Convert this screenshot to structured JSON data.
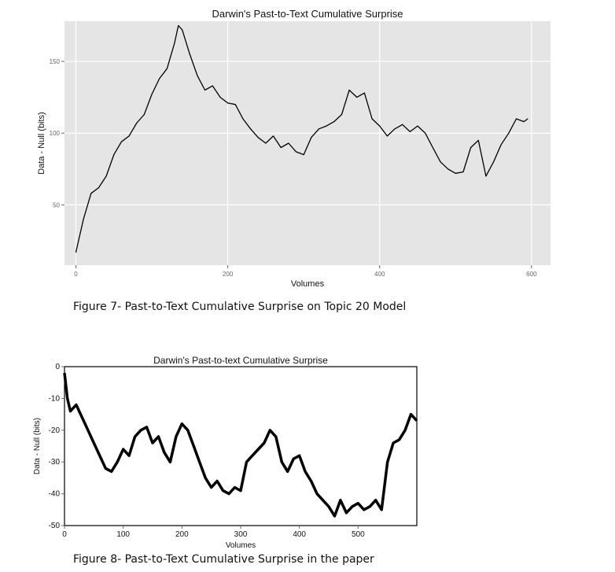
{
  "chart_data": [
    {
      "type": "line",
      "title": "Darwin's Past-to-Text Cumulative Surprise",
      "xlabel": "Volumes",
      "ylabel": "Data - Null (bits)",
      "xlim": [
        -15,
        625
      ],
      "ylim": [
        8,
        178
      ],
      "xticks": [
        0,
        200,
        400,
        600
      ],
      "yticks": [
        50,
        100,
        150
      ],
      "grid": true,
      "series": [
        {
          "x": [
            0,
            10,
            20,
            30,
            40,
            50,
            60,
            70,
            80,
            90,
            100,
            110,
            120,
            130,
            135,
            140,
            150,
            160,
            170,
            180,
            190,
            200,
            210,
            220,
            230,
            240,
            250,
            260,
            270,
            280,
            290,
            300,
            310,
            320,
            330,
            340,
            350,
            360,
            370,
            380,
            390,
            400,
            410,
            420,
            430,
            440,
            450,
            460,
            470,
            480,
            490,
            500,
            510,
            520,
            530,
            540,
            550,
            560,
            570,
            580,
            590,
            595
          ],
          "y": [
            17,
            40,
            58,
            62,
            70,
            85,
            94,
            98,
            107,
            113,
            127,
            138,
            145,
            163,
            175,
            172,
            155,
            140,
            130,
            133,
            125,
            121,
            120,
            110,
            103,
            97,
            93,
            98,
            90,
            93,
            87,
            85,
            97,
            103,
            105,
            108,
            113,
            130,
            125,
            128,
            110,
            105,
            98,
            103,
            106,
            101,
            105,
            100,
            90,
            80,
            75,
            72,
            73,
            90,
            95,
            70,
            80,
            92,
            100,
            110,
            108,
            110
          ]
        }
      ]
    },
    {
      "type": "line",
      "title": "Darwin's Past-to-text Cumulative Surprise",
      "xlabel": "Volumes",
      "ylabel": "Data - Null (bits)",
      "xlim": [
        0,
        600
      ],
      "ylim": [
        -50,
        0
      ],
      "xticks": [
        0,
        100,
        200,
        300,
        400,
        500
      ],
      "yticks": [
        0,
        -10,
        -20,
        -30,
        -40,
        -50
      ],
      "grid": false,
      "series": [
        {
          "x": [
            0,
            5,
            10,
            20,
            30,
            40,
            50,
            60,
            70,
            80,
            90,
            100,
            110,
            120,
            130,
            140,
            150,
            160,
            170,
            180,
            190,
            200,
            210,
            220,
            230,
            240,
            250,
            260,
            270,
            280,
            290,
            300,
            310,
            320,
            330,
            340,
            350,
            360,
            370,
            380,
            390,
            400,
            410,
            420,
            430,
            440,
            450,
            460,
            470,
            480,
            490,
            500,
            510,
            520,
            530,
            540,
            550,
            560,
            570,
            580,
            590,
            600
          ],
          "y": [
            -2,
            -10,
            -14,
            -12,
            -16,
            -20,
            -24,
            -28,
            -32,
            -33,
            -30,
            -26,
            -28,
            -22,
            -20,
            -19,
            -24,
            -22,
            -27,
            -30,
            -22,
            -18,
            -20,
            -25,
            -30,
            -35,
            -38,
            -36,
            -39,
            -40,
            -38,
            -39,
            -30,
            -28,
            -26,
            -24,
            -20,
            -22,
            -30,
            -33,
            -29,
            -28,
            -33,
            -36,
            -40,
            -42,
            -44,
            -47,
            -42,
            -46,
            -44,
            -43,
            -45,
            -44,
            -42,
            -45,
            -30,
            -24,
            -23,
            -20,
            -15,
            -17
          ]
        }
      ]
    }
  ],
  "captions": {
    "fig7": "Figure 7- Past-to-Text Cumulative Surprise on Topic 20 Model",
    "fig8": "Figure 8- Past-to-Text Cumulative Surprise in the paper"
  }
}
